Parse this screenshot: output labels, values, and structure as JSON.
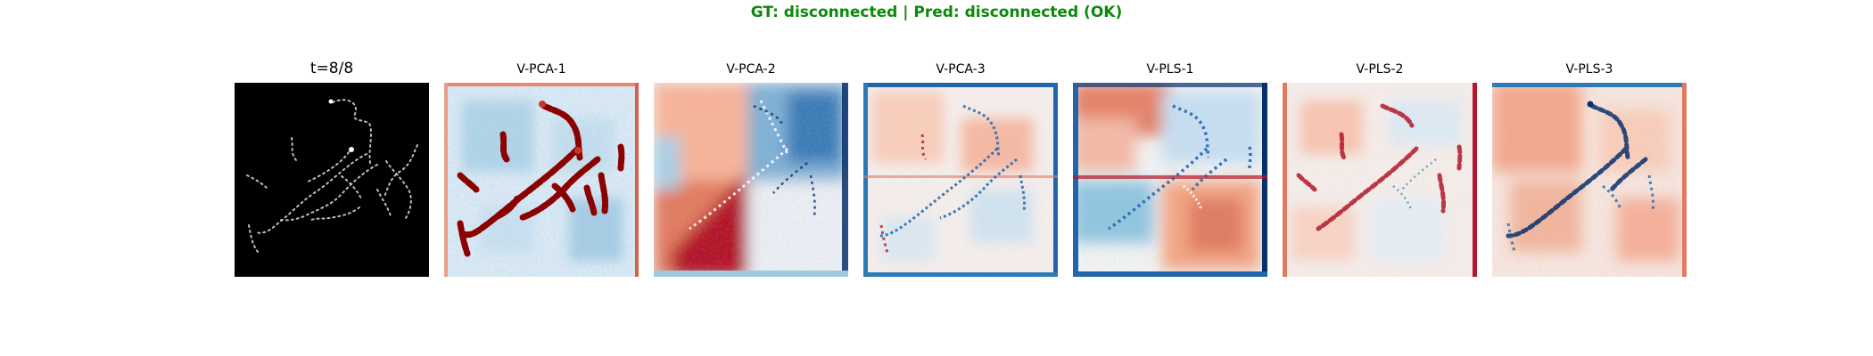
{
  "figure": {
    "title": "GT: disconnected | Pred: disconnected (OK)",
    "title_color": "#0a8a0a",
    "colormap": "RdBu_r",
    "panels": [
      {
        "title": "t=8/8",
        "kind": "input-frame"
      },
      {
        "title": "V-PCA-1",
        "kind": "heatmap"
      },
      {
        "title": "V-PCA-2",
        "kind": "heatmap"
      },
      {
        "title": "V-PCA-3",
        "kind": "heatmap"
      },
      {
        "title": "V-PLS-1",
        "kind": "heatmap"
      },
      {
        "title": "V-PLS-2",
        "kind": "heatmap"
      },
      {
        "title": "V-PLS-3",
        "kind": "heatmap"
      }
    ]
  },
  "colors": {
    "red_dark": "#8b0000",
    "red": "#d6604d",
    "red_light": "#f4a582",
    "neutral": "#f7f7f7",
    "blue_light": "#92c5de",
    "blue": "#4393c3",
    "blue_dark": "#053061",
    "input_bg": "#000000",
    "input_dots": "#bdbdbd"
  }
}
